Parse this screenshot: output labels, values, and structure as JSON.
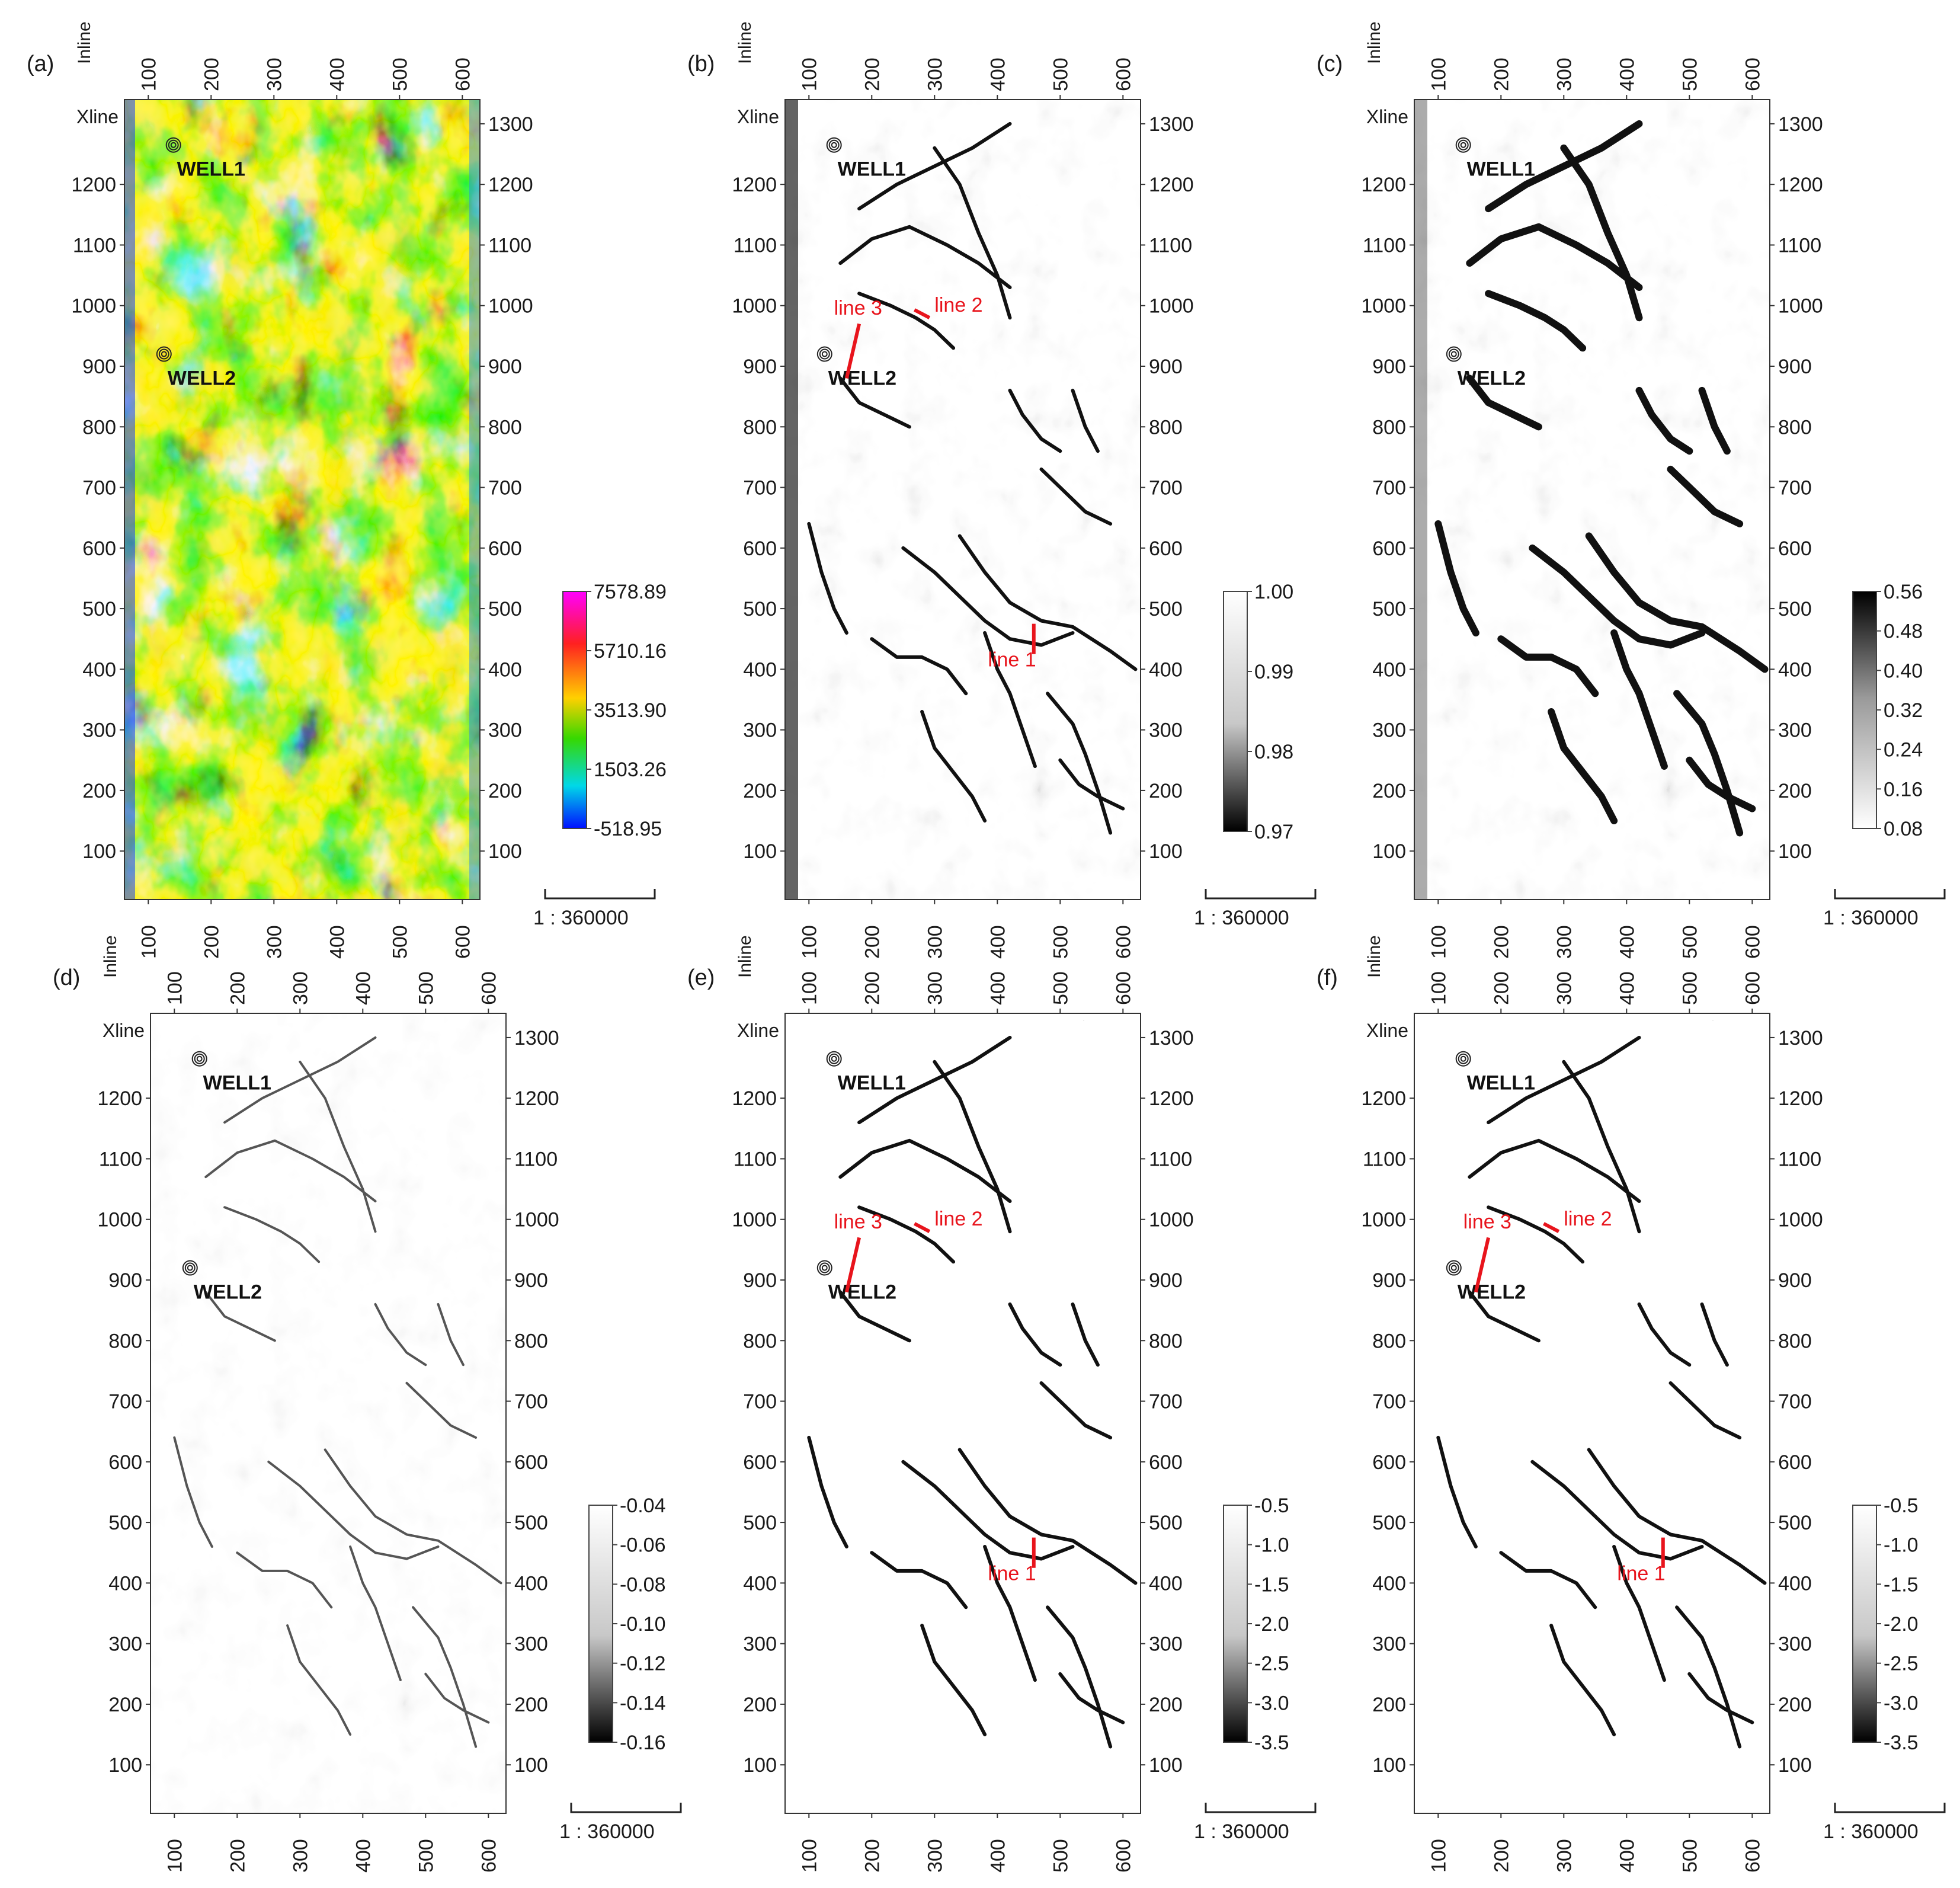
{
  "figure": {
    "panels": [
      {
        "label": "(a)",
        "kind": "color",
        "inline_axis_label": "Inline",
        "xline_axis_label": "Xline",
        "top_ticks": [
          "100",
          "200",
          "300",
          "400",
          "500",
          "600"
        ],
        "left_ticks": [
          "1200",
          "1100",
          "1000",
          "900",
          "800",
          "700",
          "600",
          "500",
          "400",
          "300",
          "200",
          "100"
        ],
        "right_ticks": [
          "1300",
          "1200",
          "1100",
          "1000",
          "900",
          "800",
          "700",
          "600",
          "500",
          "400",
          "300",
          "200",
          "100"
        ],
        "bottom_ticks": [
          "100",
          "200",
          "300",
          "400",
          "500",
          "600"
        ],
        "wells": [
          {
            "name": "WELL1",
            "inline": 140,
            "xline": 1265
          },
          {
            "name": "WELL2",
            "inline": 125,
            "xline": 920
          }
        ],
        "lines": [],
        "colorbar": {
          "type": "rainbow",
          "labels": [
            "7578.89",
            "5710.16",
            "3513.90",
            "1503.26",
            "-518.95"
          ],
          "stops": [
            "#ff00ff",
            "#ff2020",
            "#ffd000",
            "#36d800",
            "#00d8e8",
            "#0010ff"
          ]
        },
        "scale_bar": "1 : 360000"
      },
      {
        "label": "(b)",
        "kind": "gray",
        "inline_axis_label": "Inline",
        "xline_axis_label": "Xline",
        "top_ticks": [
          "100",
          "200",
          "300",
          "400",
          "500",
          "600"
        ],
        "left_ticks": [
          "1200",
          "1100",
          "1000",
          "900",
          "800",
          "700",
          "600",
          "500",
          "400",
          "300",
          "200",
          "100"
        ],
        "right_ticks": [
          "1300",
          "1200",
          "1100",
          "1000",
          "900",
          "800",
          "700",
          "600",
          "500",
          "400",
          "300",
          "200",
          "100"
        ],
        "bottom_ticks": [
          "100",
          "200",
          "300",
          "400",
          "500",
          "600"
        ],
        "wells": [
          {
            "name": "WELL1",
            "inline": 140,
            "xline": 1265
          },
          {
            "name": "WELL2",
            "inline": 125,
            "xline": 920
          }
        ],
        "lines": [
          {
            "label": "line 3"
          },
          {
            "label": "line 2"
          },
          {
            "label": "line 1"
          }
        ],
        "colorbar": {
          "type": "gray",
          "labels": [
            "1.00",
            "0.99",
            "0.98",
            "0.97"
          ]
        },
        "scale_bar": "1 : 360000"
      },
      {
        "label": "(c)",
        "kind": "gray",
        "inline_axis_label": "Inline",
        "xline_axis_label": "Xline",
        "top_ticks": [
          "100",
          "200",
          "300",
          "400",
          "500",
          "600"
        ],
        "left_ticks": [
          "1200",
          "1100",
          "1000",
          "900",
          "800",
          "700",
          "600",
          "500",
          "400",
          "300",
          "200",
          "100"
        ],
        "right_ticks": [
          "1300",
          "1200",
          "1100",
          "1000",
          "900",
          "800",
          "700",
          "600",
          "500",
          "400",
          "300",
          "200",
          "100"
        ],
        "bottom_ticks": [
          "100",
          "200",
          "300",
          "400",
          "500",
          "600"
        ],
        "wells": [
          {
            "name": "WELL1",
            "inline": 140,
            "xline": 1265
          },
          {
            "name": "WELL2",
            "inline": 125,
            "xline": 920
          }
        ],
        "lines": [],
        "colorbar": {
          "type": "gray-inv",
          "labels": [
            "0.56",
            "0.48",
            "0.40",
            "0.32",
            "0.24",
            "0.16",
            "0.08"
          ]
        },
        "scale_bar": "1 : 360000"
      },
      {
        "label": "(d)",
        "kind": "gray",
        "inline_axis_label": "Inline",
        "xline_axis_label": "Xline",
        "top_ticks": [
          "100",
          "200",
          "300",
          "400",
          "500",
          "600"
        ],
        "left_ticks": [
          "1200",
          "1100",
          "1000",
          "900",
          "800",
          "700",
          "600",
          "500",
          "400",
          "300",
          "200",
          "100"
        ],
        "right_ticks": [
          "1300",
          "1200",
          "1100",
          "1000",
          "900",
          "800",
          "700",
          "600",
          "500",
          "400",
          "300",
          "200",
          "100"
        ],
        "bottom_ticks": [
          "100",
          "200",
          "300",
          "400",
          "500",
          "600"
        ],
        "wells": [
          {
            "name": "WELL1",
            "inline": 140,
            "xline": 1265
          },
          {
            "name": "WELL2",
            "inline": 125,
            "xline": 920
          }
        ],
        "lines": [],
        "colorbar": {
          "type": "gray",
          "labels": [
            "-0.04",
            "-0.06",
            "-0.08",
            "-0.10",
            "-0.12",
            "-0.14",
            "-0.16"
          ]
        },
        "scale_bar": "1 : 360000"
      },
      {
        "label": "(e)",
        "kind": "gray",
        "inline_axis_label": "Inline",
        "xline_axis_label": "Xline",
        "top_ticks": [
          "100",
          "200",
          "300",
          "400",
          "500",
          "600"
        ],
        "left_ticks": [
          "1200",
          "1100",
          "1000",
          "900",
          "800",
          "700",
          "600",
          "500",
          "400",
          "300",
          "200",
          "100"
        ],
        "right_ticks": [
          "1300",
          "1200",
          "1100",
          "1000",
          "900",
          "800",
          "700",
          "600",
          "500",
          "400",
          "300",
          "200",
          "100"
        ],
        "bottom_ticks": [
          "100",
          "200",
          "300",
          "400",
          "500",
          "600"
        ],
        "wells": [
          {
            "name": "WELL1",
            "inline": 140,
            "xline": 1265
          },
          {
            "name": "WELL2",
            "inline": 125,
            "xline": 920
          }
        ],
        "lines": [
          {
            "label": "line 3"
          },
          {
            "label": "line 2"
          },
          {
            "label": "line 1"
          }
        ],
        "colorbar": {
          "type": "gray",
          "labels": [
            "-0.5",
            "-1.0",
            "-1.5",
            "-2.0",
            "-2.5",
            "-3.0",
            "-3.5"
          ]
        },
        "scale_bar": "1 : 360000"
      },
      {
        "label": "(f)",
        "kind": "gray",
        "inline_axis_label": "Inline",
        "xline_axis_label": "Xline",
        "top_ticks": [
          "100",
          "200",
          "300",
          "400",
          "500",
          "600"
        ],
        "left_ticks": [
          "1200",
          "1100",
          "1000",
          "900",
          "800",
          "700",
          "600",
          "500",
          "400",
          "300",
          "200",
          "100"
        ],
        "right_ticks": [
          "1300",
          "1200",
          "1100",
          "1000",
          "900",
          "800",
          "700",
          "600",
          "500",
          "400",
          "300",
          "200",
          "100"
        ],
        "bottom_ticks": [
          "100",
          "200",
          "300",
          "400",
          "500",
          "600"
        ],
        "wells": [
          {
            "name": "WELL1",
            "inline": 140,
            "xline": 1265
          },
          {
            "name": "WELL2",
            "inline": 125,
            "xline": 920
          }
        ],
        "lines": [
          {
            "label": "line 3"
          },
          {
            "label": "line 2"
          },
          {
            "label": "line 1"
          }
        ],
        "colorbar": {
          "type": "gray",
          "labels": [
            "-0.5",
            "-1.0",
            "-1.5",
            "-2.0",
            "-2.5",
            "-3.0",
            "-3.5"
          ]
        },
        "scale_bar": "1 : 360000"
      }
    ],
    "annotation_color": "#e8141c"
  }
}
